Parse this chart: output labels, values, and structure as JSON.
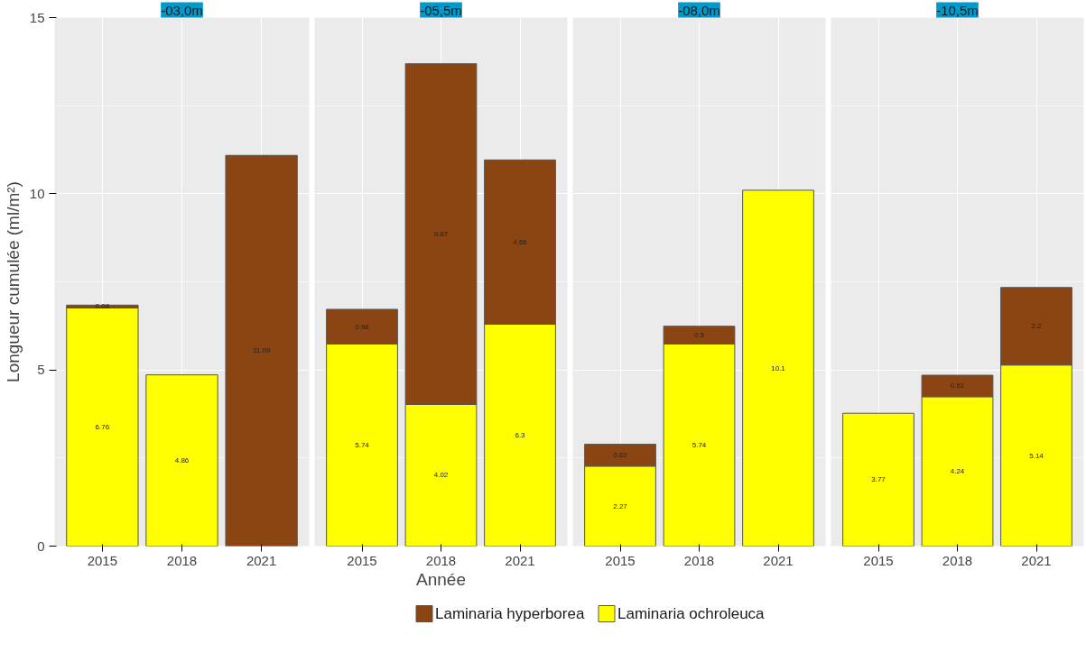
{
  "chart_data": [
    {
      "type": "bar",
      "title": "-03,0m",
      "categories": [
        "2015",
        "2018",
        "2021"
      ],
      "stacked": true,
      "ylim": [
        0,
        15
      ],
      "yticks": [
        0,
        5,
        10,
        15
      ],
      "ylabel": "Longueur cumulée (ml/m²)",
      "grid": true,
      "data_labels": true,
      "legend": "bottom",
      "series": [
        {
          "name": "Laminaria ochroleuca",
          "color": "#ffff00",
          "values": [
            6.76,
            4.86,
            null
          ]
        },
        {
          "name": "Laminaria hyperborea",
          "color": "#8b4513",
          "values": [
            0.08,
            null,
            11.09
          ]
        }
      ]
    },
    {
      "type": "bar",
      "title": "-05,5m",
      "xlabel": "Année",
      "categories": [
        "2015",
        "2018",
        "2021"
      ],
      "stacked": true,
      "ylim": [
        0,
        15
      ],
      "yticks": [
        0,
        5,
        10,
        15
      ],
      "grid": true,
      "data_labels": true,
      "tick_labels": "x",
      "series": [
        {
          "color": "#ffff00",
          "values": [
            5.74,
            4.02,
            6.3
          ]
        },
        {
          "color": "#8b4513",
          "values": [
            0.98,
            9.67,
            4.66
          ]
        }
      ]
    },
    {
      "type": "bar",
      "title": "-08,0m",
      "categories": [
        "2015",
        "2018",
        "2021"
      ],
      "stacked": true,
      "ylim": [
        0,
        15
      ],
      "yticks": [
        0,
        5,
        10,
        15
      ],
      "grid": true,
      "data_labels": true,
      "tick_labels": "x",
      "series": [
        {
          "color": "#ffff00",
          "values": [
            2.27,
            5.74,
            10.1
          ]
        },
        {
          "color": "#8b4513",
          "values": [
            0.62,
            0.5,
            null
          ]
        }
      ]
    },
    {
      "type": "bar",
      "title": "-10,5m",
      "categories": [
        "2015",
        "2018",
        "2021"
      ],
      "stacked": true,
      "ylim": [
        0,
        15
      ],
      "yticks": [
        0,
        5,
        10,
        15
      ],
      "grid": true,
      "data_labels": true,
      "tick_labels": "x",
      "series": [
        {
          "color": "#ffff00",
          "values": [
            3.77,
            4.24,
            5.14
          ]
        },
        {
          "color": "#8b4513",
          "values": [
            null,
            0.61,
            2.2
          ]
        }
      ]
    }
  ]
}
